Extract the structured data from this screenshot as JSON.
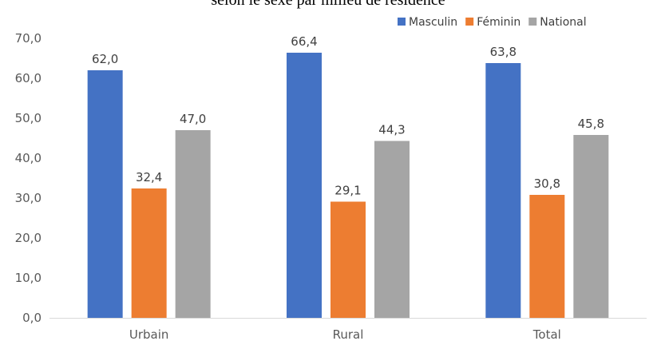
{
  "chart_data": {
    "type": "bar",
    "title": "selon le sexe par milieu de résidence",
    "categories": [
      "Urbain",
      "Rural",
      "Total"
    ],
    "series": [
      {
        "name": "Masculin",
        "color": "#4472C4",
        "values": [
          62.0,
          66.4,
          63.8
        ]
      },
      {
        "name": "Féminin",
        "color": "#ED7D31",
        "values": [
          32.4,
          29.1,
          30.8
        ]
      },
      {
        "name": "National",
        "color": "#A5A5A5",
        "values": [
          47.0,
          44.3,
          45.8
        ]
      }
    ],
    "data_labels": [
      [
        "62,0",
        "66,4",
        "63,8"
      ],
      [
        "32,4",
        "29,1",
        "30,8"
      ],
      [
        "47,0",
        "44,3",
        "45,8"
      ]
    ],
    "yticks": [
      {
        "value": 0,
        "label": "0,0"
      },
      {
        "value": 10,
        "label": "10,0"
      },
      {
        "value": 20,
        "label": "20,0"
      },
      {
        "value": 30,
        "label": "30,0"
      },
      {
        "value": 40,
        "label": "40,0"
      },
      {
        "value": 50,
        "label": "50,0"
      },
      {
        "value": 60,
        "label": "60,0"
      },
      {
        "value": 70,
        "label": "70,0"
      }
    ],
    "ylim": [
      0,
      70
    ],
    "xlabel": "",
    "ylabel": "",
    "grid": false,
    "legend_position": "top-right"
  }
}
